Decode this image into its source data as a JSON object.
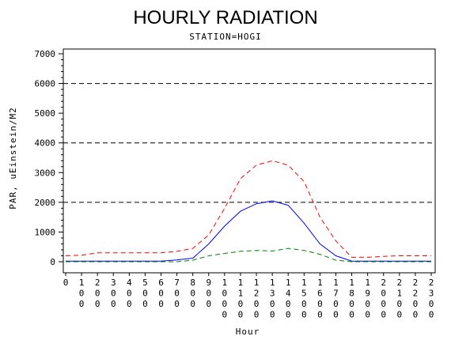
{
  "chart_data": {
    "type": "line",
    "title": "HOURLY RADIATION",
    "subtitle": "STATION=HOGI",
    "xlabel": "Hour",
    "ylabel": "PAR, uEinstein/M2",
    "x": [
      0,
      100,
      200,
      300,
      400,
      500,
      600,
      700,
      800,
      900,
      1000,
      1100,
      1200,
      1300,
      1400,
      1500,
      1600,
      1700,
      1800,
      1900,
      2000,
      2100,
      2200,
      2300
    ],
    "xticks": [
      "0",
      "100",
      "200",
      "300",
      "400",
      "500",
      "600",
      "700",
      "800",
      "900",
      "1000",
      "1100",
      "1200",
      "1300",
      "1400",
      "1500",
      "1600",
      "1700",
      "1800",
      "1900",
      "2000",
      "2100",
      "2200",
      "2300"
    ],
    "ylim": [
      0,
      7000
    ],
    "yticks": [
      0,
      1000,
      2000,
      3000,
      4000,
      5000,
      6000,
      7000
    ],
    "reference_lines": [
      2000,
      4000,
      6000
    ],
    "series": [
      {
        "color": "#ff0000",
        "dash": "dashed",
        "values": [
          200,
          220,
          300,
          300,
          300,
          300,
          300,
          350,
          450,
          900,
          1800,
          2800,
          3250,
          3400,
          3250,
          2700,
          1500,
          700,
          150,
          150,
          180,
          200,
          200,
          200
        ]
      },
      {
        "color": "#0000ff",
        "dash": "solid",
        "values": [
          20,
          20,
          20,
          20,
          20,
          20,
          20,
          60,
          120,
          600,
          1200,
          1700,
          1950,
          2050,
          1900,
          1300,
          600,
          200,
          20,
          20,
          20,
          20,
          20,
          20
        ]
      },
      {
        "color": "#008000",
        "dash": "dashed",
        "values": [
          0,
          0,
          0,
          0,
          0,
          0,
          0,
          0,
          50,
          200,
          280,
          350,
          380,
          360,
          450,
          380,
          250,
          50,
          0,
          0,
          0,
          0,
          0,
          0
        ]
      }
    ]
  }
}
